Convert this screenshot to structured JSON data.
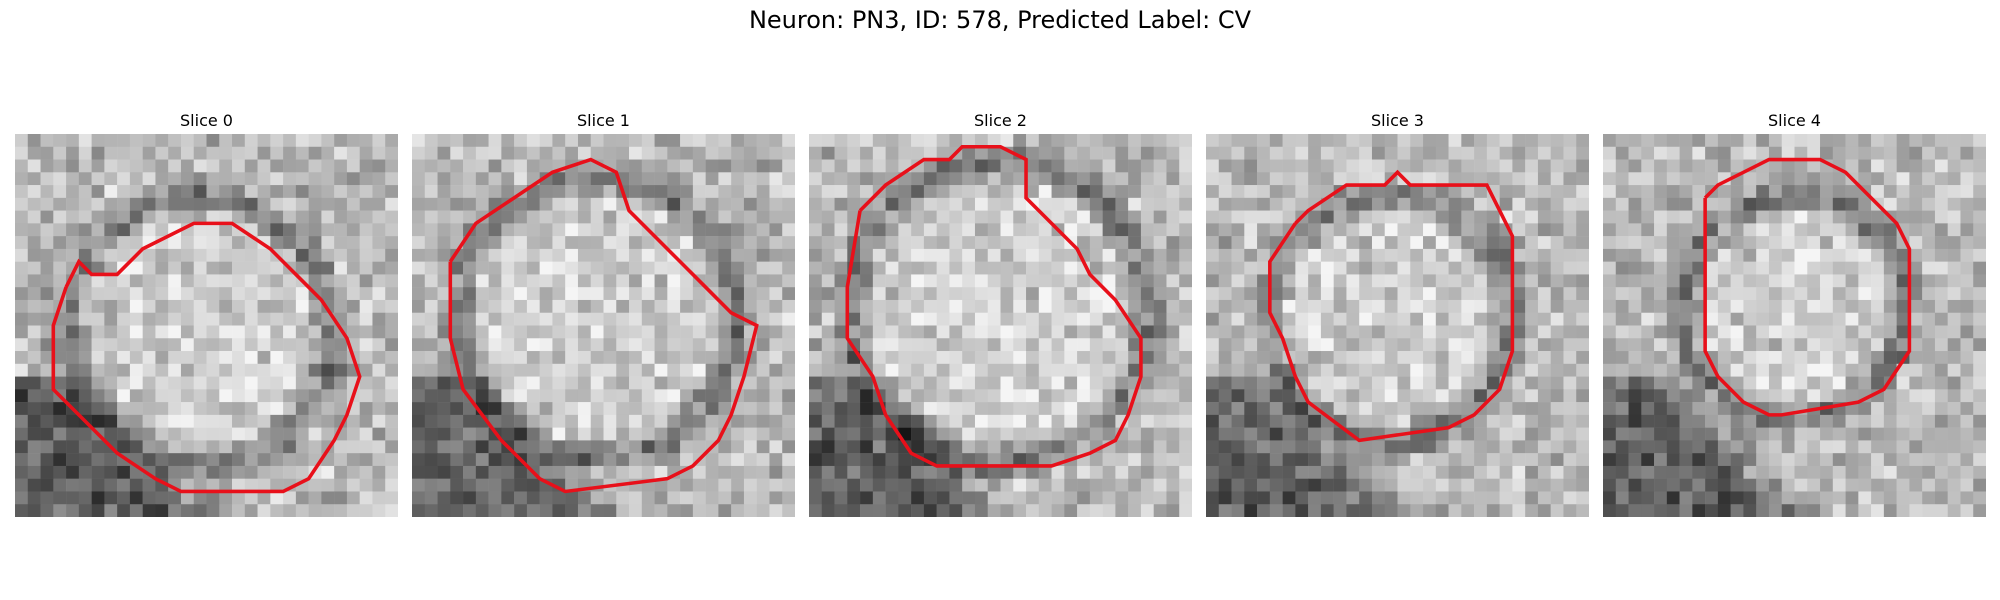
{
  "title": "Neuron: PN3, ID: 578, Predicted Label: CV",
  "contour_color": "#e8101a",
  "panels": [
    {
      "label": "Slice 0",
      "seed": 11,
      "dark_corner": "bottom-left"
    },
    {
      "label": "Slice 1",
      "seed": 23,
      "dark_corner": "bottom-left"
    },
    {
      "label": "Slice 2",
      "seed": 37,
      "dark_corner": "bottom-left"
    },
    {
      "label": "Slice 3",
      "seed": 41,
      "dark_corner": "bottom-left"
    },
    {
      "label": "Slice 4",
      "seed": 53,
      "dark_corner": "bottom-left"
    }
  ]
}
